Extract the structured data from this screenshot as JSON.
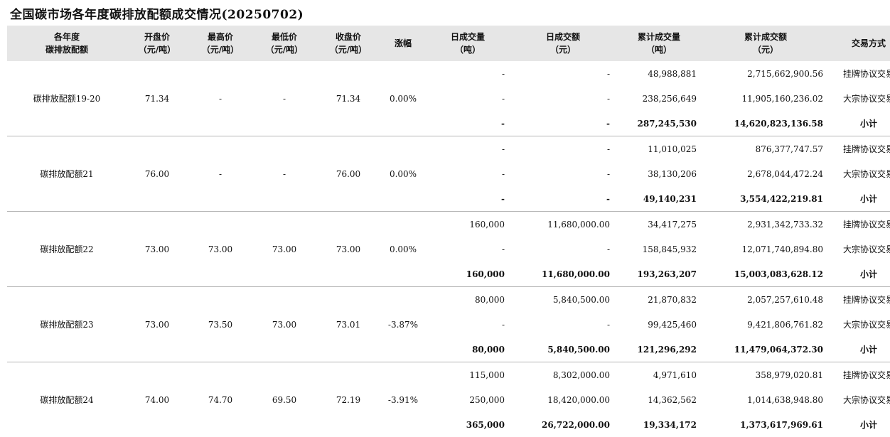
{
  "title": "全国碳市场各年度碳排放配额成交情况(20250702)",
  "headers": [
    {
      "l1": "各年度",
      "l2": "碳排放配额"
    },
    {
      "l1": "开盘价",
      "l2": "（元/吨）"
    },
    {
      "l1": "最高价",
      "l2": "（元/吨）"
    },
    {
      "l1": "最低价",
      "l2": "（元/吨）"
    },
    {
      "l1": "收盘价",
      "l2": "（元/吨）"
    },
    {
      "l1": "涨幅",
      "l2": ""
    },
    {
      "l1": "日成交量",
      "l2": "（吨）"
    },
    {
      "l1": "日成交额",
      "l2": "（元）"
    },
    {
      "l1": "累计成交量",
      "l2": "（吨）"
    },
    {
      "l1": "累计成交额",
      "l2": "（元）"
    },
    {
      "l1": "交易方式",
      "l2": ""
    }
  ],
  "groups": [
    {
      "name": "碳排放配额19-20",
      "open": "71.34",
      "high": "-",
      "low": "-",
      "close": "71.34",
      "change": "0.00%",
      "rows": [
        {
          "dvol": "-",
          "damt": "-",
          "cvol": "48,988,881",
          "camt": "2,715,662,900.56",
          "method": "挂牌协议交易"
        },
        {
          "dvol": "-",
          "damt": "-",
          "cvol": "238,256,649",
          "camt": "11,905,160,236.02",
          "method": "大宗协议交易"
        },
        {
          "dvol": "-",
          "damt": "-",
          "cvol": "287,245,530",
          "camt": "14,620,823,136.58",
          "method": "小计"
        }
      ]
    },
    {
      "name": "碳排放配额21",
      "open": "76.00",
      "high": "-",
      "low": "-",
      "close": "76.00",
      "change": "0.00%",
      "rows": [
        {
          "dvol": "-",
          "damt": "-",
          "cvol": "11,010,025",
          "camt": "876,377,747.57",
          "method": "挂牌协议交易"
        },
        {
          "dvol": "-",
          "damt": "-",
          "cvol": "38,130,206",
          "camt": "2,678,044,472.24",
          "method": "大宗协议交易"
        },
        {
          "dvol": "-",
          "damt": "-",
          "cvol": "49,140,231",
          "camt": "3,554,422,219.81",
          "method": "小计"
        }
      ]
    },
    {
      "name": "碳排放配额22",
      "open": "73.00",
      "high": "73.00",
      "low": "73.00",
      "close": "73.00",
      "change": "0.00%",
      "rows": [
        {
          "dvol": "160,000",
          "damt": "11,680,000.00",
          "cvol": "34,417,275",
          "camt": "2,931,342,733.32",
          "method": "挂牌协议交易"
        },
        {
          "dvol": "-",
          "damt": "-",
          "cvol": "158,845,932",
          "camt": "12,071,740,894.80",
          "method": "大宗协议交易"
        },
        {
          "dvol": "160,000",
          "damt": "11,680,000.00",
          "cvol": "193,263,207",
          "camt": "15,003,083,628.12",
          "method": "小计"
        }
      ]
    },
    {
      "name": "碳排放配额23",
      "open": "73.00",
      "high": "73.50",
      "low": "73.00",
      "close": "73.01",
      "change": "-3.87%",
      "rows": [
        {
          "dvol": "80,000",
          "damt": "5,840,500.00",
          "cvol": "21,870,832",
          "camt": "2,057,257,610.48",
          "method": "挂牌协议交易"
        },
        {
          "dvol": "-",
          "damt": "-",
          "cvol": "99,425,460",
          "camt": "9,421,806,761.82",
          "method": "大宗协议交易"
        },
        {
          "dvol": "80,000",
          "damt": "5,840,500.00",
          "cvol": "121,296,292",
          "camt": "11,479,064,372.30",
          "method": "小计"
        }
      ]
    },
    {
      "name": "碳排放配额24",
      "open": "74.00",
      "high": "74.70",
      "low": "69.50",
      "close": "72.19",
      "change": "-3.91%",
      "rows": [
        {
          "dvol": "115,000",
          "damt": "8,302,000.00",
          "cvol": "4,971,610",
          "camt": "358,979,020.81",
          "method": "挂牌协议交易"
        },
        {
          "dvol": "250,000",
          "damt": "18,420,000.00",
          "cvol": "14,362,562",
          "camt": "1,014,638,948.80",
          "method": "大宗协议交易"
        },
        {
          "dvol": "365,000",
          "damt": "26,722,000.00",
          "cvol": "19,334,172",
          "camt": "1,373,617,969.61",
          "method": "小计"
        }
      ]
    }
  ]
}
